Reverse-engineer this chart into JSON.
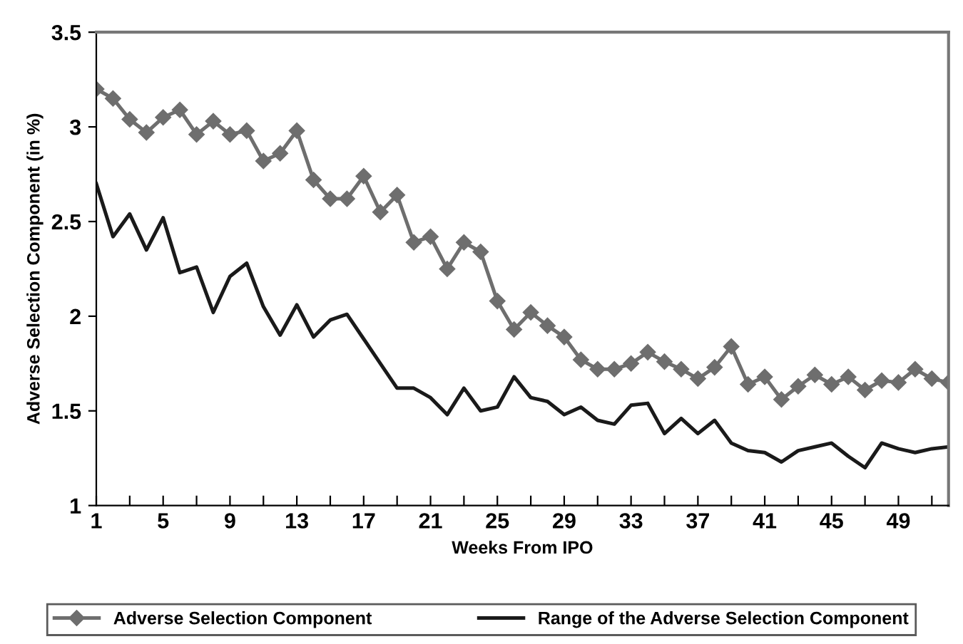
{
  "chart_data": {
    "type": "line",
    "xlabel": "Weeks From IPO",
    "ylabel": "Adverse Selection Component (in %)",
    "categories": [
      "1",
      null,
      null,
      null,
      "5",
      null,
      null,
      null,
      "9",
      null,
      null,
      null,
      "13",
      null,
      null,
      null,
      "17",
      null,
      null,
      null,
      "21",
      null,
      null,
      null,
      "25",
      null,
      null,
      null,
      "29",
      null,
      null,
      null,
      "33",
      null,
      null,
      null,
      "37",
      null,
      null,
      null,
      "41",
      null,
      null,
      null,
      "45",
      null,
      null,
      null,
      "49",
      null,
      null,
      null
    ],
    "series": [
      {
        "name": "Adverse Selection Component",
        "color": "#6e6e6e",
        "marker": "diamond",
        "values": [
          3.2,
          3.15,
          3.04,
          2.97,
          3.05,
          3.09,
          2.96,
          3.03,
          2.96,
          2.98,
          2.82,
          2.86,
          2.98,
          2.72,
          2.62,
          2.62,
          2.74,
          2.55,
          2.64,
          2.39,
          2.42,
          2.25,
          2.39,
          2.34,
          2.08,
          1.93,
          2.02,
          1.95,
          1.89,
          1.77,
          1.72,
          1.72,
          1.75,
          1.81,
          1.76,
          1.72,
          1.67,
          1.73,
          1.84,
          1.64,
          1.68,
          1.56,
          1.63,
          1.69,
          1.64,
          1.68,
          1.61,
          1.66,
          1.65,
          1.72,
          1.67,
          1.65
        ]
      },
      {
        "name": "Range of the Adverse Selection Component",
        "color": "#1a1a1a",
        "marker": "none",
        "values": [
          2.7,
          2.42,
          2.54,
          2.35,
          2.52,
          2.23,
          2.26,
          2.02,
          2.21,
          2.28,
          2.05,
          1.9,
          2.06,
          1.89,
          1.98,
          2.01,
          1.88,
          1.75,
          1.62,
          1.62,
          1.57,
          1.48,
          1.62,
          1.5,
          1.52,
          1.68,
          1.57,
          1.55,
          1.48,
          1.52,
          1.45,
          1.43,
          1.53,
          1.54,
          1.38,
          1.46,
          1.38,
          1.45,
          1.33,
          1.29,
          1.28,
          1.23,
          1.29,
          1.31,
          1.33,
          1.26,
          1.2,
          1.33,
          1.3,
          1.28,
          1.3,
          1.31
        ]
      }
    ],
    "ylim": [
      1,
      3.5
    ],
    "yticks": [
      1,
      1.5,
      2,
      2.5,
      3,
      3.5
    ],
    "grid": false,
    "legend": "bottom",
    "line_style": "solid"
  }
}
